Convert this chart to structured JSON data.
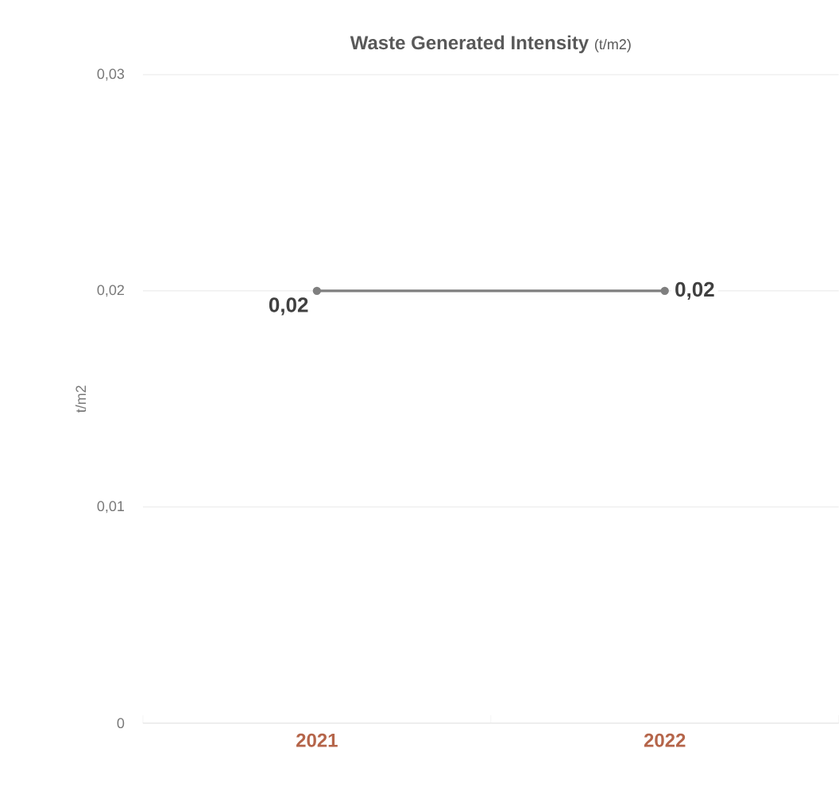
{
  "chart_data": {
    "type": "line",
    "title": "Waste Generated Intensity",
    "subtitle": "(t/m2)",
    "ylabel": "t/m2",
    "categories": [
      "2021",
      "2022"
    ],
    "series": [
      {
        "color": "#7f7f7f",
        "values": [
          0.02,
          0.02
        ],
        "value_labels": [
          "0,02",
          "0,02"
        ]
      }
    ],
    "ylim": [
      0,
      0.03
    ],
    "yticks": [
      {
        "value": 0,
        "label": "0"
      },
      {
        "value": 0.01,
        "label": "0,01"
      },
      {
        "value": 0.02,
        "label": "0,02"
      },
      {
        "value": 0.03,
        "label": "0,03"
      }
    ],
    "grid": "y",
    "marker": "circle",
    "line_style": "solid"
  }
}
